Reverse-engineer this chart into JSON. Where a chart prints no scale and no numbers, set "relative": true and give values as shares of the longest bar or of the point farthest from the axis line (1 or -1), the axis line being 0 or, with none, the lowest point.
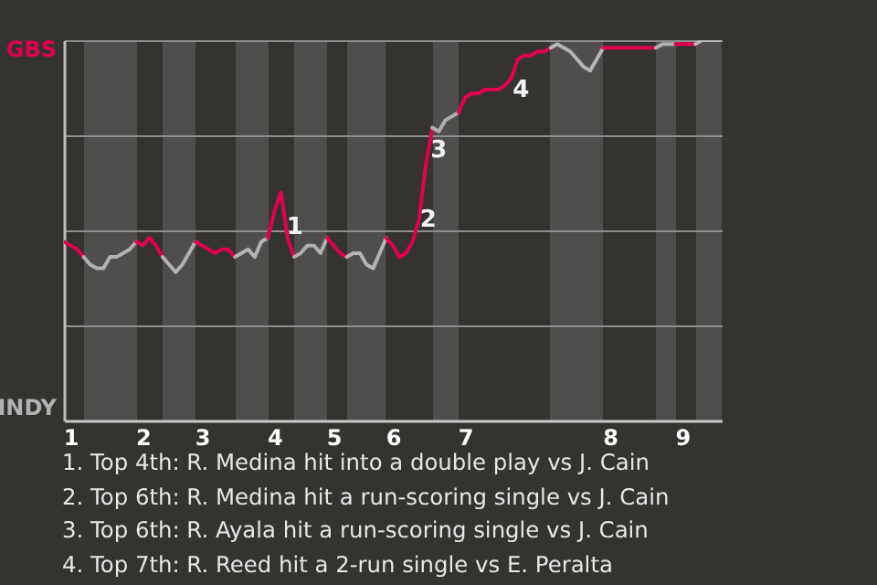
{
  "chart_data": {
    "type": "line",
    "relative": true,
    "categories": [
      null,
      "1",
      null,
      null,
      null,
      null,
      null,
      null,
      null,
      null,
      null,
      null,
      "2",
      null,
      null,
      null,
      null,
      null,
      null,
      null,
      null,
      "3",
      null,
      null,
      null,
      null,
      null,
      null,
      null,
      null,
      null,
      null,
      "4",
      null,
      null,
      null,
      null,
      null,
      null,
      null,
      null,
      "5",
      null,
      null,
      null,
      null,
      null,
      null,
      null,
      null,
      "6",
      null,
      null,
      null,
      null,
      null,
      null,
      null,
      null,
      null,
      null,
      "7",
      null,
      null,
      null,
      null,
      null,
      null,
      null,
      null,
      null,
      null,
      null,
      null,
      null,
      null,
      null,
      null,
      null,
      null,
      null,
      null,
      null,
      "8",
      null,
      null,
      null,
      null,
      null,
      null,
      null,
      null,
      null,
      null,
      "9",
      null,
      null,
      null,
      null,
      null,
      null
    ],
    "grid": "y",
    "series": [
      {
        "color": "#e3004f",
        "values": [
          0.47,
          0.46,
          0.45,
          0.43,
          null,
          null,
          null,
          null,
          null,
          null,
          null,
          null,
          null,
          null,
          null,
          null,
          null,
          null,
          null,
          null,
          null,
          null,
          null,
          null,
          null,
          null,
          null,
          null,
          null,
          null,
          null,
          null,
          null,
          null,
          null,
          null,
          null,
          null,
          null,
          null,
          null,
          null,
          null,
          null,
          null,
          null,
          null,
          null,
          null,
          null,
          null,
          null,
          null,
          null,
          null,
          null,
          null,
          null,
          null,
          null,
          null,
          null,
          null,
          null,
          null,
          null,
          null,
          null,
          null,
          null,
          null,
          null,
          null,
          null,
          null,
          null,
          null,
          null,
          null,
          null,
          null,
          null,
          null,
          null,
          null,
          null,
          null,
          null,
          null,
          null,
          null,
          null,
          null,
          null,
          null,
          null,
          null,
          null,
          null,
          null,
          null
        ]
      },
      {
        "color": "#b2b2b2",
        "values": [
          null,
          null,
          null,
          0.43,
          0.41,
          0.4,
          0.4,
          0.43,
          0.43,
          0.44,
          0.45,
          0.47,
          null,
          null,
          null,
          null,
          null,
          null,
          null,
          null,
          null,
          null,
          null,
          null,
          null,
          null,
          null,
          null,
          null,
          null,
          null,
          null,
          null,
          null,
          null,
          null,
          null,
          null,
          null,
          null,
          null,
          null,
          null,
          null,
          null,
          null,
          null,
          null,
          null,
          null,
          null,
          null,
          null,
          null,
          null,
          null,
          null,
          null,
          null,
          null,
          null,
          null,
          null,
          null,
          null,
          null,
          null,
          null,
          null,
          null,
          null,
          null,
          null,
          null,
          null,
          null,
          null,
          null,
          null,
          null,
          null,
          null,
          null,
          null,
          null,
          null,
          null,
          null,
          null,
          null,
          null,
          null,
          null,
          null,
          null,
          null,
          null,
          null,
          null,
          null,
          null
        ]
      },
      {
        "color": "#e2004f",
        "values": [
          null,
          null,
          null,
          null,
          null,
          null,
          null,
          null,
          null,
          null,
          null,
          0.47,
          0.46,
          0.48,
          0.46,
          0.43,
          null,
          null,
          null,
          null,
          null,
          null,
          null,
          null,
          null,
          null,
          null,
          null,
          null,
          null,
          null,
          null,
          null,
          null,
          null,
          null,
          null,
          null,
          null,
          null,
          null,
          null,
          null,
          null,
          null,
          null,
          null,
          null,
          null,
          null,
          null,
          null,
          null,
          null,
          null,
          null,
          null,
          null,
          null,
          null,
          null,
          null,
          null,
          null,
          null,
          null,
          null,
          null,
          null,
          null,
          null,
          null,
          null,
          null,
          null,
          null,
          null,
          null,
          null,
          null,
          null,
          null,
          null,
          null,
          null,
          null,
          null,
          null,
          null,
          null,
          null,
          null,
          null,
          null,
          null,
          null,
          null,
          null,
          null,
          null,
          null
        ]
      },
      {
        "color": "#b1b1b1",
        "values": [
          null,
          null,
          null,
          null,
          null,
          null,
          null,
          null,
          null,
          null,
          null,
          null,
          null,
          null,
          null,
          0.43,
          0.41,
          0.39,
          0.41,
          0.44,
          0.47,
          null,
          null,
          null,
          null,
          null,
          null,
          null,
          null,
          null,
          null,
          null,
          null,
          null,
          null,
          null,
          null,
          null,
          null,
          null,
          null,
          null,
          null,
          null,
          null,
          null,
          null,
          null,
          null,
          null,
          null,
          null,
          null,
          null,
          null,
          null,
          null,
          null,
          null,
          null,
          null,
          null,
          null,
          null,
          null,
          null,
          null,
          null,
          null,
          null,
          null,
          null,
          null,
          null,
          null,
          null,
          null,
          null,
          null,
          null,
          null,
          null,
          null,
          null,
          null,
          null,
          null,
          null,
          null,
          null,
          null,
          null,
          null,
          null,
          null,
          null,
          null,
          null,
          null,
          null,
          null
        ]
      },
      {
        "color": "#e1004f",
        "values": [
          null,
          null,
          null,
          null,
          null,
          null,
          null,
          null,
          null,
          null,
          null,
          null,
          null,
          null,
          null,
          null,
          null,
          null,
          null,
          null,
          0.47,
          0.46,
          0.45,
          0.44,
          0.45,
          0.45,
          0.43,
          null,
          null,
          null,
          null,
          null,
          null,
          null,
          null,
          null,
          null,
          null,
          null,
          null,
          null,
          null,
          null,
          null,
          null,
          null,
          null,
          null,
          null,
          null,
          null,
          null,
          null,
          null,
          null,
          null,
          null,
          null,
          null,
          null,
          null,
          null,
          null,
          null,
          null,
          null,
          null,
          null,
          null,
          null,
          null,
          null,
          null,
          null,
          null,
          null,
          null,
          null,
          null,
          null,
          null,
          null,
          null,
          null,
          null,
          null,
          null,
          null,
          null,
          null,
          null,
          null,
          null,
          null,
          null,
          null,
          null,
          null,
          null,
          null,
          null
        ]
      },
      {
        "color": "#b3b3b3",
        "values": [
          null,
          null,
          null,
          null,
          null,
          null,
          null,
          null,
          null,
          null,
          null,
          null,
          null,
          null,
          null,
          null,
          null,
          null,
          null,
          null,
          null,
          null,
          null,
          null,
          null,
          null,
          0.43,
          0.44,
          0.45,
          0.43,
          0.47,
          0.48,
          null,
          null,
          null,
          null,
          null,
          null,
          null,
          null,
          null,
          null,
          null,
          null,
          null,
          null,
          null,
          null,
          null,
          null,
          null,
          null,
          null,
          null,
          null,
          null,
          null,
          null,
          null,
          null,
          null,
          null,
          null,
          null,
          null,
          null,
          null,
          null,
          null,
          null,
          null,
          null,
          null,
          null,
          null,
          null,
          null,
          null,
          null,
          null,
          null,
          null,
          null,
          null,
          null,
          null,
          null,
          null,
          null,
          null,
          null,
          null,
          null,
          null,
          null,
          null,
          null,
          null,
          null,
          null,
          null
        ]
      },
      {
        "color": "#e3014f",
        "values": [
          null,
          null,
          null,
          null,
          null,
          null,
          null,
          null,
          null,
          null,
          null,
          null,
          null,
          null,
          null,
          null,
          null,
          null,
          null,
          null,
          null,
          null,
          null,
          null,
          null,
          null,
          null,
          null,
          null,
          null,
          null,
          0.48,
          0.55,
          0.6,
          0.48,
          0.43,
          null,
          null,
          null,
          null,
          null,
          null,
          null,
          null,
          null,
          null,
          null,
          null,
          null,
          null,
          null,
          null,
          null,
          null,
          null,
          null,
          null,
          null,
          null,
          null,
          null,
          null,
          null,
          null,
          null,
          null,
          null,
          null,
          null,
          null,
          null,
          null,
          null,
          null,
          null,
          null,
          null,
          null,
          null,
          null,
          null,
          null,
          null,
          null,
          null,
          null,
          null,
          null,
          null,
          null,
          null,
          null,
          null,
          null,
          null,
          null,
          null,
          null,
          null,
          null,
          null
        ]
      },
      {
        "color": "#b0b0b0",
        "values": [
          null,
          null,
          null,
          null,
          null,
          null,
          null,
          null,
          null,
          null,
          null,
          null,
          null,
          null,
          null,
          null,
          null,
          null,
          null,
          null,
          null,
          null,
          null,
          null,
          null,
          null,
          null,
          null,
          null,
          null,
          null,
          null,
          null,
          null,
          null,
          0.43,
          0.44,
          0.46,
          0.46,
          0.44,
          0.48,
          null,
          null,
          null,
          null,
          null,
          null,
          null,
          null,
          null,
          null,
          null,
          null,
          null,
          null,
          null,
          null,
          null,
          null,
          null,
          null,
          null,
          null,
          null,
          null,
          null,
          null,
          null,
          null,
          null,
          null,
          null,
          null,
          null,
          null,
          null,
          null,
          null,
          null,
          null,
          null,
          null,
          null,
          null,
          null,
          null,
          null,
          null,
          null,
          null,
          null,
          null,
          null,
          null,
          null,
          null,
          null,
          null,
          null,
          null,
          null
        ]
      },
      {
        "color": "#e2014f",
        "values": [
          null,
          null,
          null,
          null,
          null,
          null,
          null,
          null,
          null,
          null,
          null,
          null,
          null,
          null,
          null,
          null,
          null,
          null,
          null,
          null,
          null,
          null,
          null,
          null,
          null,
          null,
          null,
          null,
          null,
          null,
          null,
          null,
          null,
          null,
          null,
          null,
          null,
          null,
          null,
          null,
          0.48,
          0.46,
          0.44,
          0.43,
          null,
          null,
          null,
          null,
          null,
          null,
          null,
          null,
          null,
          null,
          null,
          null,
          null,
          null,
          null,
          null,
          null,
          null,
          null,
          null,
          null,
          null,
          null,
          null,
          null,
          null,
          null,
          null,
          null,
          null,
          null,
          null,
          null,
          null,
          null,
          null,
          null,
          null,
          null,
          null,
          null,
          null,
          null,
          null,
          null,
          null,
          null,
          null,
          null,
          null,
          null,
          null,
          null,
          null,
          null,
          null,
          null
        ]
      },
      {
        "color": "#b4b4b4",
        "values": [
          null,
          null,
          null,
          null,
          null,
          null,
          null,
          null,
          null,
          null,
          null,
          null,
          null,
          null,
          null,
          null,
          null,
          null,
          null,
          null,
          null,
          null,
          null,
          null,
          null,
          null,
          null,
          null,
          null,
          null,
          null,
          null,
          null,
          null,
          null,
          null,
          null,
          null,
          null,
          null,
          null,
          null,
          null,
          0.43,
          0.44,
          0.44,
          0.41,
          0.4,
          0.44,
          0.48,
          null,
          null,
          null,
          null,
          null,
          null,
          null,
          null,
          null,
          null,
          null,
          null,
          null,
          null,
          null,
          null,
          null,
          null,
          null,
          null,
          null,
          null,
          null,
          null,
          null,
          null,
          null,
          null,
          null,
          null,
          null,
          null,
          null,
          null,
          null,
          null,
          null,
          null,
          null,
          null,
          null,
          null,
          null,
          null,
          null,
          null,
          null,
          null,
          null,
          null,
          null
        ]
      },
      {
        "color": "#e1014f",
        "values": [
          null,
          null,
          null,
          null,
          null,
          null,
          null,
          null,
          null,
          null,
          null,
          null,
          null,
          null,
          null,
          null,
          null,
          null,
          null,
          null,
          null,
          null,
          null,
          null,
          null,
          null,
          null,
          null,
          null,
          null,
          null,
          null,
          null,
          null,
          null,
          null,
          null,
          null,
          null,
          null,
          null,
          null,
          null,
          null,
          null,
          null,
          null,
          null,
          null,
          0.48,
          0.46,
          0.43,
          0.44,
          0.47,
          0.53,
          0.67,
          0.77,
          null,
          null,
          null,
          null,
          null,
          null,
          null,
          null,
          null,
          null,
          null,
          null,
          null,
          null,
          null,
          null,
          null,
          null,
          null,
          null,
          null,
          null,
          null,
          null,
          null,
          null,
          null,
          null,
          null,
          null,
          null,
          null,
          null,
          null,
          null,
          null,
          null,
          null,
          null,
          null,
          null,
          null,
          null,
          null
        ]
      },
      {
        "color": "#afafaf",
        "values": [
          null,
          null,
          null,
          null,
          null,
          null,
          null,
          null,
          null,
          null,
          null,
          null,
          null,
          null,
          null,
          null,
          null,
          null,
          null,
          null,
          null,
          null,
          null,
          null,
          null,
          null,
          null,
          null,
          null,
          null,
          null,
          null,
          null,
          null,
          null,
          null,
          null,
          null,
          null,
          null,
          null,
          null,
          null,
          null,
          null,
          null,
          null,
          null,
          null,
          null,
          null,
          null,
          null,
          null,
          null,
          null,
          0.77,
          0.76,
          0.79,
          0.8,
          0.81,
          null,
          null,
          null,
          null,
          null,
          null,
          null,
          null,
          null,
          null,
          null,
          null,
          null,
          null,
          null,
          null,
          null,
          null,
          null,
          null,
          null,
          null,
          null,
          null,
          null,
          null,
          null,
          null,
          null,
          null,
          null,
          null,
          null,
          null,
          null,
          null,
          null,
          null,
          null,
          null
        ]
      },
      {
        "color": "#e3024f",
        "values": [
          null,
          null,
          null,
          null,
          null,
          null,
          null,
          null,
          null,
          null,
          null,
          null,
          null,
          null,
          null,
          null,
          null,
          null,
          null,
          null,
          null,
          null,
          null,
          null,
          null,
          null,
          null,
          null,
          null,
          null,
          null,
          null,
          null,
          null,
          null,
          null,
          null,
          null,
          null,
          null,
          null,
          null,
          null,
          null,
          null,
          null,
          null,
          null,
          null,
          null,
          null,
          null,
          null,
          null,
          null,
          null,
          null,
          null,
          null,
          null,
          0.81,
          0.85,
          0.86,
          0.86,
          0.87,
          0.87,
          0.87,
          0.88,
          0.9,
          0.95,
          0.96,
          0.96,
          0.97,
          0.97,
          0.98,
          null,
          null,
          null,
          null,
          null,
          null,
          null,
          null,
          null,
          null,
          null,
          null,
          null,
          null,
          null,
          null,
          null,
          null,
          null,
          null,
          null,
          null,
          null,
          null,
          null,
          null
        ]
      },
      {
        "color": "#b5b5b5",
        "values": [
          null,
          null,
          null,
          null,
          null,
          null,
          null,
          null,
          null,
          null,
          null,
          null,
          null,
          null,
          null,
          null,
          null,
          null,
          null,
          null,
          null,
          null,
          null,
          null,
          null,
          null,
          null,
          null,
          null,
          null,
          null,
          null,
          null,
          null,
          null,
          null,
          null,
          null,
          null,
          null,
          null,
          null,
          null,
          null,
          null,
          null,
          null,
          null,
          null,
          null,
          null,
          null,
          null,
          null,
          null,
          null,
          null,
          null,
          null,
          null,
          null,
          null,
          null,
          null,
          null,
          null,
          null,
          null,
          null,
          null,
          null,
          null,
          null,
          null,
          0.98,
          0.99,
          0.98,
          0.97,
          0.95,
          0.93,
          0.92,
          0.95,
          0.98,
          null,
          null,
          null,
          null,
          null,
          null,
          null,
          null,
          null,
          null,
          null,
          null,
          null,
          null,
          null,
          null,
          null,
          null
        ]
      },
      {
        "color": "#e2024f",
        "values": [
          null,
          null,
          null,
          null,
          null,
          null,
          null,
          null,
          null,
          null,
          null,
          null,
          null,
          null,
          null,
          null,
          null,
          null,
          null,
          null,
          null,
          null,
          null,
          null,
          null,
          null,
          null,
          null,
          null,
          null,
          null,
          null,
          null,
          null,
          null,
          null,
          null,
          null,
          null,
          null,
          null,
          null,
          null,
          null,
          null,
          null,
          null,
          null,
          null,
          null,
          null,
          null,
          null,
          null,
          null,
          null,
          null,
          null,
          null,
          null,
          null,
          null,
          null,
          null,
          null,
          null,
          null,
          null,
          null,
          null,
          null,
          null,
          null,
          null,
          null,
          null,
          null,
          null,
          null,
          null,
          null,
          null,
          0.98,
          0.98,
          0.98,
          0.98,
          0.98,
          0.98,
          0.98,
          0.98,
          0.98,
          null,
          null,
          null,
          null,
          null,
          null,
          null,
          null,
          null,
          null
        ]
      },
      {
        "color": "#aeaeae",
        "values": [
          null,
          null,
          null,
          null,
          null,
          null,
          null,
          null,
          null,
          null,
          null,
          null,
          null,
          null,
          null,
          null,
          null,
          null,
          null,
          null,
          null,
          null,
          null,
          null,
          null,
          null,
          null,
          null,
          null,
          null,
          null,
          null,
          null,
          null,
          null,
          null,
          null,
          null,
          null,
          null,
          null,
          null,
          null,
          null,
          null,
          null,
          null,
          null,
          null,
          null,
          null,
          null,
          null,
          null,
          null,
          null,
          null,
          null,
          null,
          null,
          null,
          null,
          null,
          null,
          null,
          null,
          null,
          null,
          null,
          null,
          null,
          null,
          null,
          null,
          null,
          null,
          null,
          null,
          null,
          null,
          null,
          null,
          null,
          null,
          null,
          null,
          null,
          null,
          null,
          null,
          0.98,
          0.99,
          0.99,
          0.99,
          null,
          null,
          null,
          null,
          null,
          null,
          null
        ]
      },
      {
        "color": "#e1024f",
        "values": [
          null,
          null,
          null,
          null,
          null,
          null,
          null,
          null,
          null,
          null,
          null,
          null,
          null,
          null,
          null,
          null,
          null,
          null,
          null,
          null,
          null,
          null,
          null,
          null,
          null,
          null,
          null,
          null,
          null,
          null,
          null,
          null,
          null,
          null,
          null,
          null,
          null,
          null,
          null,
          null,
          null,
          null,
          null,
          null,
          null,
          null,
          null,
          null,
          null,
          null,
          null,
          null,
          null,
          null,
          null,
          null,
          null,
          null,
          null,
          null,
          null,
          null,
          null,
          null,
          null,
          null,
          null,
          null,
          null,
          null,
          null,
          null,
          null,
          null,
          null,
          null,
          null,
          null,
          null,
          null,
          null,
          null,
          null,
          null,
          null,
          null,
          null,
          null,
          null,
          null,
          null,
          null,
          null,
          0.99,
          0.99,
          0.99,
          0.99,
          null,
          null,
          null,
          null
        ]
      },
      {
        "color": "#b6b6b6",
        "values": [
          null,
          null,
          null,
          null,
          null,
          null,
          null,
          null,
          null,
          null,
          null,
          null,
          null,
          null,
          null,
          null,
          null,
          null,
          null,
          null,
          null,
          null,
          null,
          null,
          null,
          null,
          null,
          null,
          null,
          null,
          null,
          null,
          null,
          null,
          null,
          null,
          null,
          null,
          null,
          null,
          null,
          null,
          null,
          null,
          null,
          null,
          null,
          null,
          null,
          null,
          null,
          null,
          null,
          null,
          null,
          null,
          null,
          null,
          null,
          null,
          null,
          null,
          null,
          null,
          null,
          null,
          null,
          null,
          null,
          null,
          null,
          null,
          null,
          null,
          null,
          null,
          null,
          null,
          null,
          null,
          null,
          null,
          null,
          null,
          null,
          null,
          null,
          null,
          null,
          null,
          null,
          null,
          null,
          null,
          null,
          null,
          0.99,
          1,
          1,
          1,
          1
        ]
      }
    ],
    "annotations": [
      "GBS",
      "INDY",
      "1",
      "2",
      "3",
      "4",
      "1. Top 4th: R. Medina hit into a double play vs J. Cain",
      "2. Top 6th: R. Medina hit a run-scoring single vs J. Cain",
      "3. Top 6th: R. Ayala hit a run-scoring single vs J. Cain",
      "4. Top 7th: R. Reed hit a 2-run single vs E. Peralta"
    ]
  }
}
